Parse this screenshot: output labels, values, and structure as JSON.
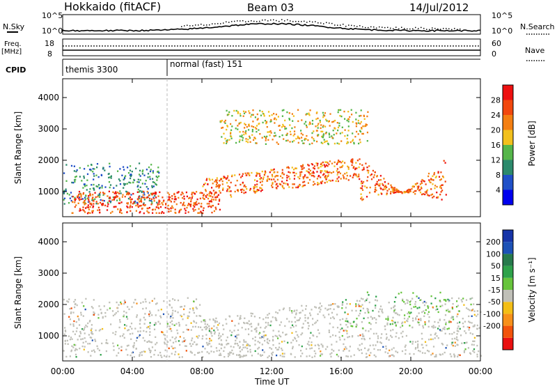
{
  "header": {
    "title": "Hokkaido (fitACF)",
    "beam": "Beam 03",
    "date": "14/Jul/2012"
  },
  "status_panels": {
    "nsky_label": "N.Sky",
    "nsearch_label": "N.Search",
    "nsky_ticks": [
      "10^5",
      "10^0"
    ],
    "nsearch_ticks": [
      "10^5",
      "10^0"
    ],
    "freq_label": "Freq.",
    "freq_unit": "[MHz]",
    "freq_ticks": [
      "18",
      "8"
    ],
    "nave_label": "Nave",
    "nave_ticks": [
      "60",
      "0"
    ],
    "cpid_label": "CPID",
    "cpid_segments": [
      {
        "name": "themis 3300",
        "start_hour": 0
      },
      {
        "name": "normal (fast) 151",
        "start_hour": 6
      }
    ]
  },
  "colors": {
    "power_scale": [
      "#0000ee",
      "#2050c8",
      "#2c8a6c",
      "#55b64a",
      "#f2c01d",
      "#f47f12",
      "#f2480e",
      "#ee1010"
    ],
    "velocity_scale": [
      "#ea1010",
      "#f2530b",
      "#f7901a",
      "#f3be16",
      "#c0c0b8",
      "#67c43c",
      "#2ea24a",
      "#277a4c",
      "#1c52b6",
      "#1634a8"
    ]
  },
  "chart_data": [
    {
      "type": "heatmap",
      "name": "power",
      "xlabel": "Time UT",
      "ylabel": "Slant Range [km]",
      "xlim": [
        0,
        24
      ],
      "ylim": [
        200,
        4600
      ],
      "x_tick_labels": [
        "00:00",
        "04:00",
        "08:00",
        "12:00",
        "16:00",
        "20:00",
        "00:00"
      ],
      "y_tick_values": [
        1000,
        2000,
        3000,
        4000
      ],
      "y_tick_labels": [
        "1000",
        "2000",
        "3000",
        "4000"
      ],
      "colorbar_label": "Power [dB]",
      "colorbar_ticks": [
        "4",
        "8",
        "12",
        "16",
        "20",
        "24",
        "28"
      ],
      "colorbar_range": [
        0,
        32
      ],
      "features": [
        {
          "region": "low-range echoes, blue/green fringe",
          "start_hour": 0,
          "end_hour": 5.5,
          "range_km": [
            600,
            1900
          ],
          "power_db": 10
        },
        {
          "region": "intense near-range echoes",
          "start_hour": 0.5,
          "end_hour": 9,
          "range_km": [
            300,
            1000
          ],
          "power_db": 26
        },
        {
          "region": "main rising band",
          "start_hour": 8,
          "end_hour": 17,
          "range_km": [
            700,
            2200
          ],
          "power_db": 24
        },
        {
          "region": "upper sporadic band",
          "start_hour": 9,
          "end_hour": 17.5,
          "range_km": [
            2500,
            3600
          ],
          "power_db": 18
        },
        {
          "region": "late V-shaped trace",
          "start_hour": 17,
          "end_hour": 22,
          "range_km": [
            700,
            2100
          ],
          "power_db": 24
        }
      ]
    },
    {
      "type": "heatmap",
      "name": "velocity",
      "xlabel": "Time UT",
      "ylabel": "Slant Range [km]",
      "xlim": [
        0,
        24
      ],
      "ylim": [
        200,
        4600
      ],
      "x_tick_labels": [
        "00:00",
        "04:00",
        "08:00",
        "12:00",
        "16:00",
        "20:00",
        "00:00"
      ],
      "y_tick_values": [
        1000,
        2000,
        3000,
        4000
      ],
      "y_tick_labels": [
        "1000",
        "2000",
        "3000",
        "4000"
      ],
      "colorbar_label": "Velocity [m s⁻¹]",
      "colorbar_ticks": [
        "200",
        "100",
        "50",
        "15",
        "-15",
        "-50",
        "-100",
        "-200"
      ],
      "colorbar_range": [
        -250,
        250
      ],
      "features": [
        {
          "region": "ground scatter, mostly near-zero velocity",
          "start_hour": 0,
          "end_hour": 24,
          "range_km": [
            300,
            2200
          ],
          "velocity_ms": 0
        },
        {
          "region": "sparse positive velocities",
          "start_hour": 16,
          "end_hour": 23,
          "range_km": [
            1200,
            2400
          ],
          "velocity_ms": 60
        }
      ]
    }
  ]
}
